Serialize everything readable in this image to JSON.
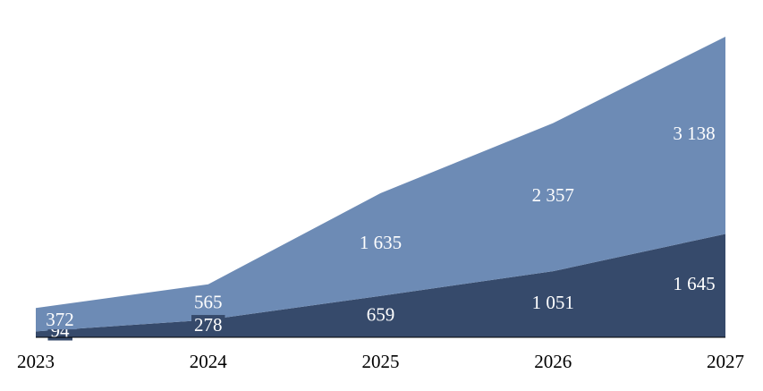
{
  "chart_data": {
    "type": "stacked-area",
    "categories": [
      "2023",
      "2024",
      "2025",
      "2026",
      "2027"
    ],
    "series": [
      {
        "name": null,
        "color": "#364a6b",
        "values": [
          94,
          278,
          659,
          1051,
          1645
        ],
        "value_labels": [
          "94",
          "278",
          "659",
          "1 051",
          "1 645"
        ]
      },
      {
        "name": null,
        "color": "#6d8bb5",
        "values": [
          372,
          565,
          1635,
          2357,
          3138
        ],
        "value_labels": [
          "372",
          "565",
          "1 635",
          "2 357",
          "3 138"
        ]
      }
    ]
  }
}
